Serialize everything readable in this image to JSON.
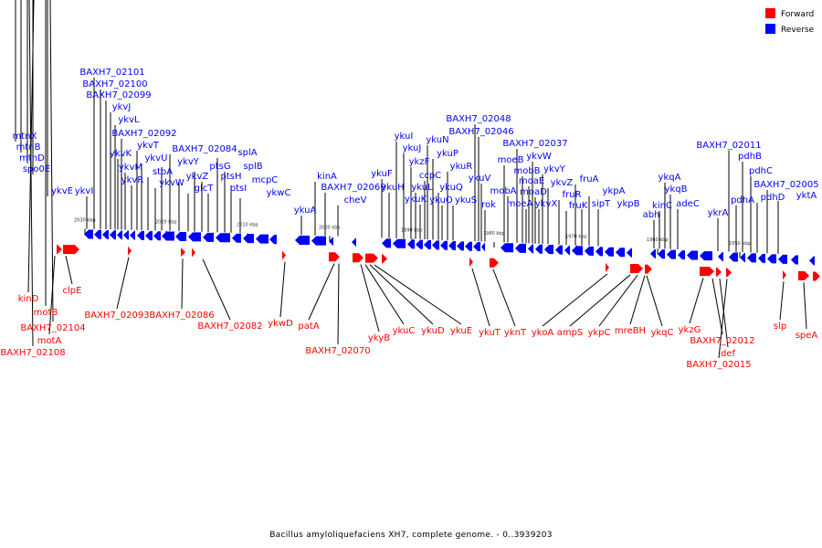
{
  "caption": "Bacillus amyloliquefaciens XH7, complete genome. - 0..3939203",
  "legend": [
    {
      "label": "Forward",
      "color": "#ff0000"
    },
    {
      "label": "Reverse",
      "color": "#0000ff"
    }
  ],
  "colors": {
    "forward": "#ff0000",
    "reverse": "#0000ff",
    "backbone": "#8c8c8c",
    "leader": "#000000"
  },
  "ticks": [
    "2030 kbp",
    "2020 kbp",
    "2010 kbp",
    "2000 kbp",
    "1990 kbp",
    "1980 kbp",
    "1970 kbp",
    "1960 kbp",
    "1950 kbp"
  ],
  "reverse_labels": [
    "mtnX",
    "mtnB",
    "mtnD",
    "spo0E",
    "ykvE",
    "ykvI",
    "BAXH7_02101",
    "BAXH7_02100",
    "BAXH7_02099",
    "ykvJ",
    "ykvL",
    "ykvK",
    "BAXH7_02092",
    "ykvM",
    "ykvR",
    "ykvT",
    "ykvU",
    "stoA",
    "ykvW",
    "ykvY",
    "BAXH7_02084",
    "ykvZ",
    "glcT",
    "ptsG",
    "ptsH",
    "ptsI",
    "splA",
    "splB",
    "mcpC",
    "ykwC",
    "ykuA",
    "kinA",
    "BAXH7_02069",
    "cheV",
    "ykuF",
    "ykuH",
    "ykuI",
    "ykuJ",
    "ykzF",
    "ykuL",
    "ykuK",
    "ccpC",
    "ykuN",
    "ykuP",
    "ykuQ",
    "ykuO",
    "ykuR",
    "ykuS",
    "BAXH7_02048",
    "BAXH7_02046",
    "ykuV",
    "rok",
    "moeB",
    "mobA",
    "BAXH7_02037",
    "mobB",
    "moeA",
    "moaE",
    "ykvW",
    "moaD",
    "ykvX",
    "ykvY",
    "ykvZ",
    "fruR",
    "fruK",
    "fruA",
    "sipT",
    "ykpA",
    "ykpB",
    "abh",
    "kinC",
    "ykqA",
    "ykqB",
    "adeC",
    "ykrA",
    "BAXH7_02011",
    "pdhA",
    "pdhB",
    "pdhC",
    "pdhD",
    "BAXH7_02005",
    "yktA"
  ],
  "forward_labels": [
    "kinD",
    "motB",
    "BAXH7_02104",
    "motA",
    "BAXH7_02108",
    "clpE",
    "BAXH7_02093",
    "BAXH7_02086",
    "BAXH7_02082",
    "ykwD",
    "patA",
    "BAXH7_02070",
    "ykyB",
    "ykuC",
    "ykuD",
    "ykuE",
    "ykuT",
    "yknT",
    "ykoA",
    "ampS",
    "ykpC",
    "mreBH",
    "ykqC",
    "ykzG",
    "BAXH7_02012",
    "def",
    "BAXH7_02015",
    "slp",
    "speA"
  ]
}
